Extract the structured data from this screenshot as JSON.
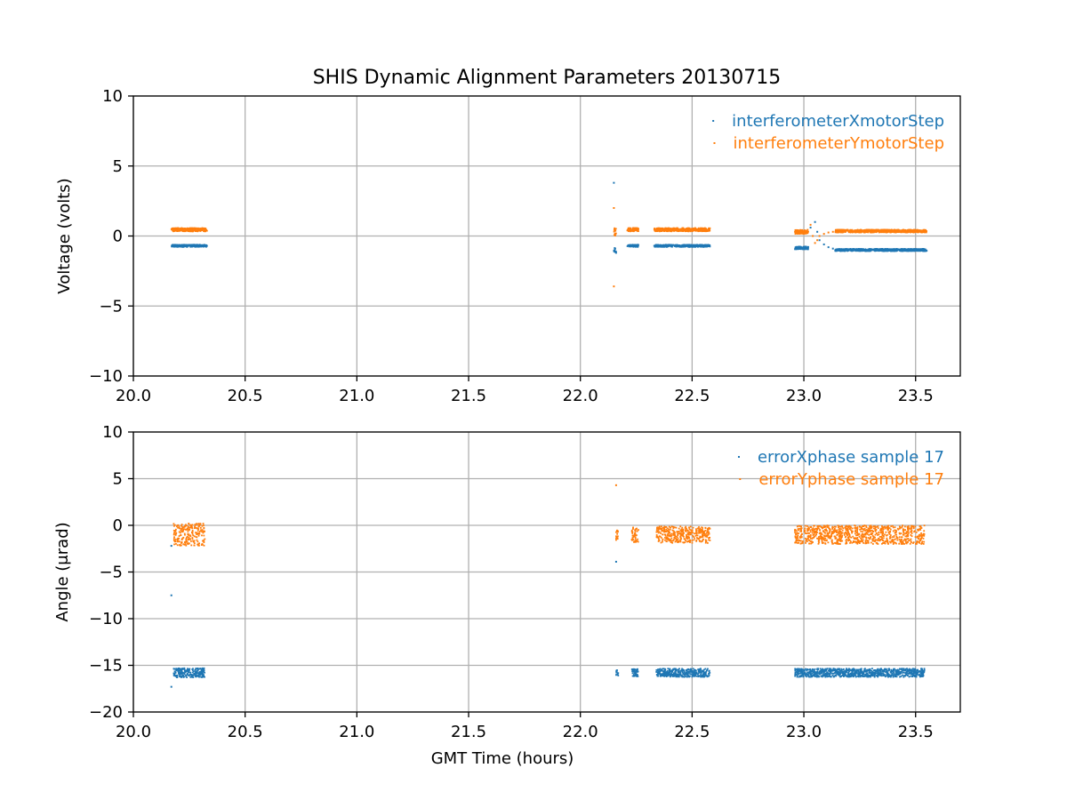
{
  "figure": {
    "title": "SHIS Dynamic Alignment Parameters 20130715"
  },
  "chart_data": [
    {
      "type": "scatter",
      "xlabel": "",
      "ylabel": "Voltage (volts)",
      "xlim": [
        20.0,
        23.7
      ],
      "ylim": [
        -10,
        10
      ],
      "xticks": [
        20.0,
        20.5,
        21.0,
        21.5,
        22.0,
        22.5,
        23.0,
        23.5
      ],
      "xtick_labels": [
        "20.0",
        "20.5",
        "21.0",
        "21.5",
        "22.0",
        "22.5",
        "23.0",
        "23.5"
      ],
      "yticks": [
        10,
        5,
        0,
        -5,
        -10
      ],
      "ytick_labels": [
        "10",
        "5",
        "0",
        "−5",
        "−10"
      ],
      "grid": true,
      "legend_position": "top-right",
      "series": [
        {
          "name": "interferometerXmotorStep",
          "color": "#1f77b4",
          "segments": [
            {
              "x": [
                20.17,
                20.33
              ],
              "y": -0.7,
              "spread": 0.08
            },
            {
              "x": [
                22.15,
                22.16
              ],
              "y": -1.0,
              "spread": 0.15
            },
            {
              "x": [
                22.21,
                22.26
              ],
              "y": -0.7,
              "spread": 0.08
            },
            {
              "x": [
                22.33,
                22.58
              ],
              "y": -0.7,
              "spread": 0.08
            },
            {
              "x": [
                22.96,
                23.02
              ],
              "y": -0.85,
              "spread": 0.1
            },
            {
              "x": [
                23.14,
                23.55
              ],
              "y": -1.0,
              "spread": 0.08
            }
          ],
          "points": [
            [
              22.15,
              3.8
            ],
            [
              22.16,
              -1.2
            ],
            [
              23.03,
              0.6
            ],
            [
              23.05,
              1.0
            ],
            [
              23.06,
              0.3
            ],
            [
              23.07,
              -0.3
            ],
            [
              23.09,
              -0.6
            ],
            [
              23.11,
              -0.8
            ],
            [
              23.13,
              -0.9
            ]
          ]
        },
        {
          "name": "interferometerYmotorStep",
          "color": "#ff7f0e",
          "segments": [
            {
              "x": [
                20.17,
                20.33
              ],
              "y": 0.45,
              "spread": 0.12
            },
            {
              "x": [
                22.15,
                22.16
              ],
              "y": 0.3,
              "spread": 0.3
            },
            {
              "x": [
                22.21,
                22.26
              ],
              "y": 0.45,
              "spread": 0.12
            },
            {
              "x": [
                22.33,
                22.58
              ],
              "y": 0.45,
              "spread": 0.12
            },
            {
              "x": [
                22.96,
                23.02
              ],
              "y": 0.3,
              "spread": 0.15
            },
            {
              "x": [
                23.14,
                23.55
              ],
              "y": 0.35,
              "spread": 0.1
            }
          ],
          "points": [
            [
              22.15,
              2.0
            ],
            [
              22.15,
              -3.6
            ],
            [
              23.03,
              0.8
            ],
            [
              23.04,
              0.0
            ],
            [
              23.05,
              -0.5
            ],
            [
              23.06,
              -0.3
            ],
            [
              23.07,
              0.0
            ],
            [
              23.09,
              0.15
            ],
            [
              23.11,
              0.25
            ],
            [
              23.13,
              0.3
            ]
          ]
        }
      ]
    },
    {
      "type": "scatter",
      "xlabel": "GMT Time (hours)",
      "ylabel": "Angle (μrad)",
      "xlim": [
        20.0,
        23.7
      ],
      "ylim": [
        -20,
        10
      ],
      "xticks": [
        20.0,
        20.5,
        21.0,
        21.5,
        22.0,
        22.5,
        23.0,
        23.5
      ],
      "xtick_labels": [
        "20.0",
        "20.5",
        "21.0",
        "21.5",
        "22.0",
        "22.5",
        "23.0",
        "23.5"
      ],
      "yticks": [
        10,
        5,
        0,
        -5,
        -10,
        -15,
        -20
      ],
      "ytick_labels": [
        "10",
        "5",
        "0",
        "−5",
        "−10",
        "−15",
        "−20"
      ],
      "grid": true,
      "legend_position": "top-right",
      "series": [
        {
          "name": "errorXphase sample 17",
          "color": "#1f77b4",
          "segments": [
            {
              "x": [
                20.18,
                20.32
              ],
              "y": -15.8,
              "spread": 0.5
            },
            {
              "x": [
                22.16,
                22.17
              ],
              "y": -15.8,
              "spread": 0.3
            },
            {
              "x": [
                22.23,
                22.26
              ],
              "y": -15.8,
              "spread": 0.4
            },
            {
              "x": [
                22.34,
                22.58
              ],
              "y": -15.8,
              "spread": 0.45
            },
            {
              "x": [
                22.96,
                23.54
              ],
              "y": -15.8,
              "spread": 0.45
            }
          ],
          "points": [
            [
              20.17,
              -2.2
            ],
            [
              20.17,
              -7.5
            ],
            [
              20.17,
              -17.3
            ],
            [
              22.16,
              -3.9
            ]
          ]
        },
        {
          "name": "errorYphase sample 17",
          "color": "#ff7f0e",
          "segments": [
            {
              "x": [
                20.18,
                20.32
              ],
              "y": -1.0,
              "spread": 1.2
            },
            {
              "x": [
                22.16,
                22.17
              ],
              "y": -1.0,
              "spread": 0.6
            },
            {
              "x": [
                22.23,
                22.26
              ],
              "y": -1.0,
              "spread": 0.8
            },
            {
              "x": [
                22.34,
                22.58
              ],
              "y": -1.0,
              "spread": 0.9
            },
            {
              "x": [
                22.96,
                23.54
              ],
              "y": -1.0,
              "spread": 1.0
            }
          ],
          "points": [
            [
              22.16,
              4.3
            ]
          ]
        }
      ]
    }
  ]
}
